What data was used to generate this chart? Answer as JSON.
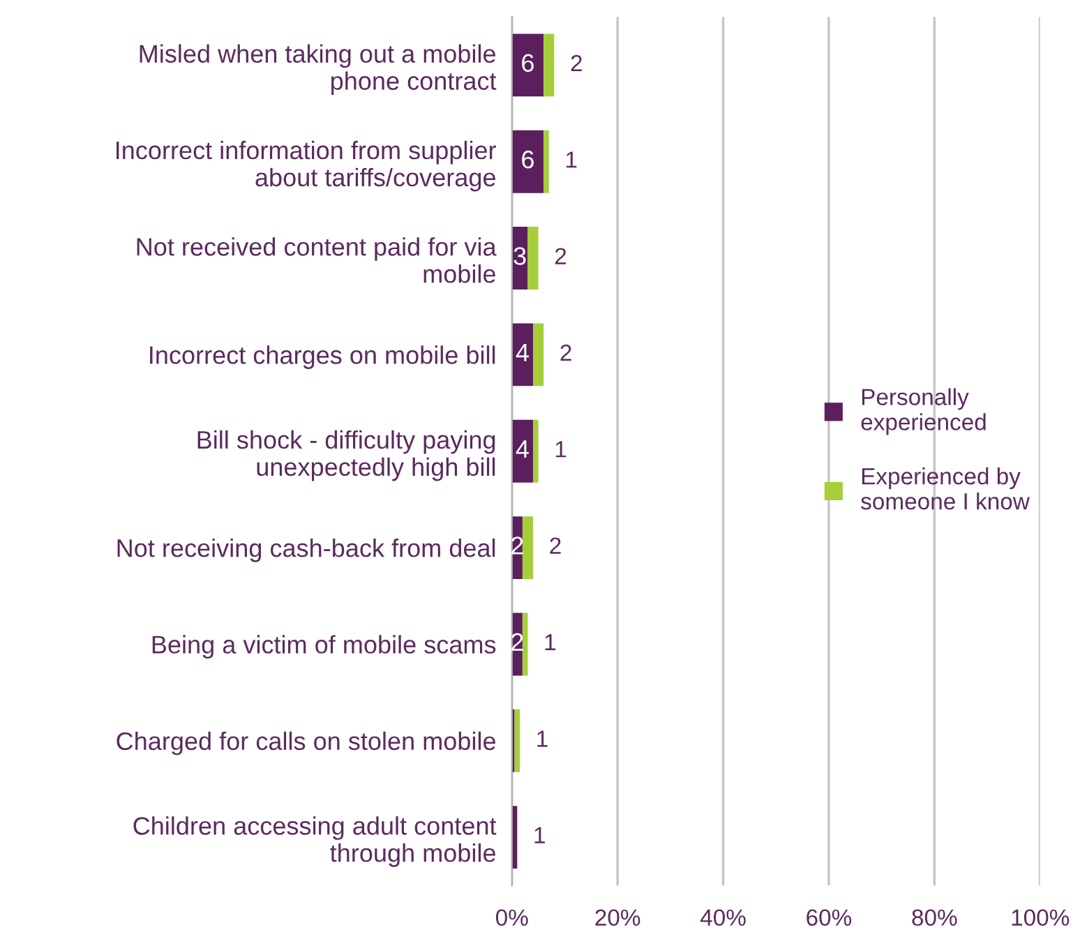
{
  "chart_data": {
    "type": "bar",
    "orientation": "horizontal",
    "stacked": true,
    "categories": [
      "Misled when taking out a mobile phone contract",
      "Incorrect information from supplier about tariffs/coverage",
      "Not received content paid for via mobile",
      "Incorrect charges on mobile bill",
      "Bill shock - difficulty paying unexpectedly high bill",
      "Not receiving cash-back from deal",
      "Being a victim of mobile scams",
      "Charged for calls on stolen mobile",
      "Children accessing adult content through mobile"
    ],
    "series": [
      {
        "name": "Personally experienced",
        "color": "#5b1f5e",
        "values": [
          6,
          6,
          3,
          4,
          4,
          2,
          2,
          0.5,
          1
        ],
        "value_labels": [
          "6",
          "6",
          "3",
          "4",
          "4",
          "2",
          "2",
          null,
          "1"
        ]
      },
      {
        "name": "Experienced by someone I know",
        "color": "#a6ce39",
        "values": [
          2,
          1,
          2,
          2,
          1,
          2,
          1,
          1,
          0
        ],
        "value_labels": [
          "2",
          "1",
          "2",
          "2",
          "1",
          "2",
          "1",
          "1",
          null
        ]
      }
    ],
    "xlim": [
      0,
      100
    ],
    "xticks": [
      {
        "value": 0,
        "label": "0%"
      },
      {
        "value": 20,
        "label": "20%"
      },
      {
        "value": 40,
        "label": "40%"
      },
      {
        "value": 60,
        "label": "60%"
      },
      {
        "value": 80,
        "label": "80%"
      },
      {
        "value": 100,
        "label": "100%"
      }
    ],
    "grid": "x",
    "legend": "right"
  }
}
